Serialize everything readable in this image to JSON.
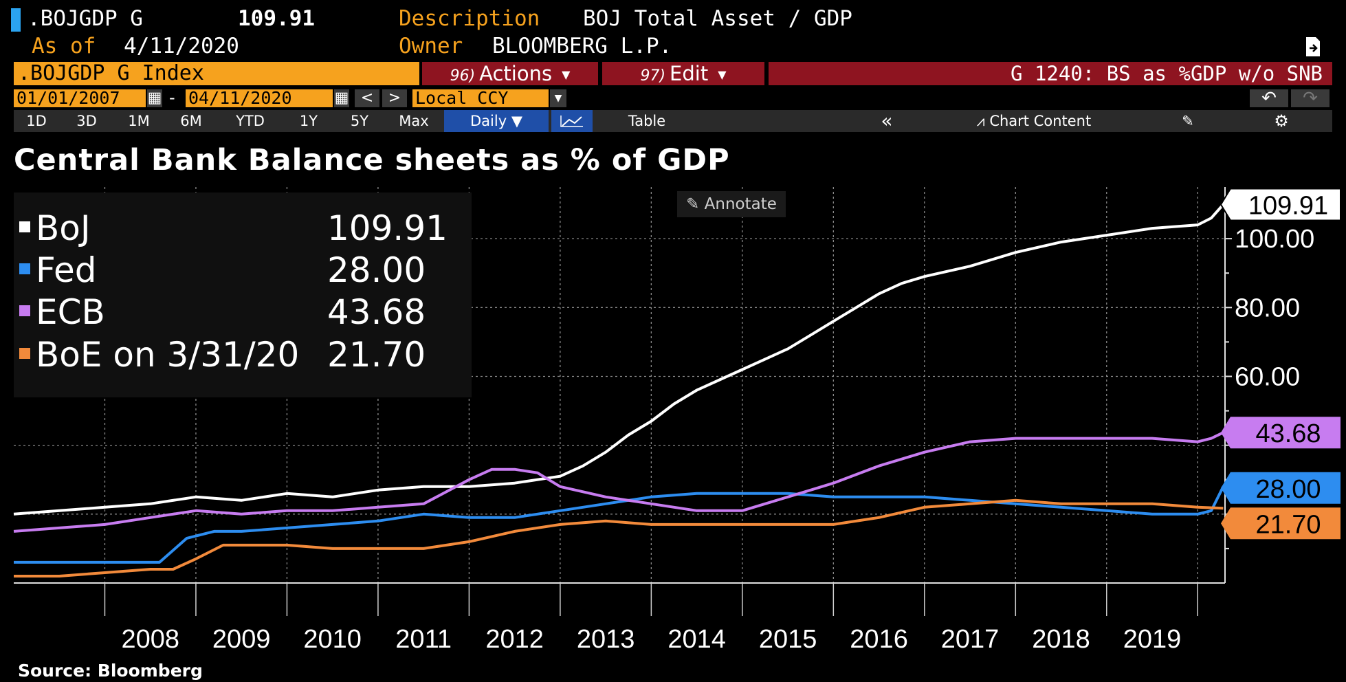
{
  "header": {
    "ticker": ".BOJGDP G",
    "last_value": "109.91",
    "description_label": "Description",
    "description": "BOJ Total Asset / GDP",
    "as_of_label": "As of",
    "as_of": "4/11/2020",
    "owner_label": "Owner",
    "owner": "BLOOMBERG L.P."
  },
  "toolbar": {
    "ticker_box": ".BOJGDP G Index",
    "actions_num": "96)",
    "actions_label": "Actions",
    "edit_num": "97)",
    "edit_label": "Edit",
    "chart_id": "G 1240: BS as %GDP w/o SNB",
    "start_date": "01/01/2007",
    "date_sep": "-",
    "end_date": "04/11/2020",
    "prev": "<",
    "next": ">",
    "currency": "Local CCY",
    "undo_icon": "undo-icon",
    "redo_icon": "redo-icon"
  },
  "ranges": {
    "items": [
      "1D",
      "3D",
      "1M",
      "6M",
      "YTD",
      "1Y",
      "5Y",
      "Max"
    ],
    "frequency": "Daily",
    "table_label": "Table",
    "collapse": "«",
    "chart_content_label": "Chart Content"
  },
  "annotate_label": "Annotate",
  "legend": [
    {
      "name": "BoJ",
      "value": "109.91"
    },
    {
      "name": "Fed",
      "value": "28.00"
    },
    {
      "name": "ECB",
      "value": "43.68"
    },
    {
      "name": "BoE on 3/31/20",
      "value": "21.70"
    }
  ],
  "source": "Source: Bloomberg",
  "chart_data": {
    "type": "line",
    "title": "Central Bank Balance sheets as % of GDP",
    "xlabel": "",
    "ylabel": "",
    "x_ticks": [
      "2008",
      "2009",
      "2010",
      "2011",
      "2012",
      "2013",
      "2014",
      "2015",
      "2016",
      "2017",
      "2018",
      "2019"
    ],
    "y_ticks": [
      "100.00",
      "80.00",
      "60.00"
    ],
    "ylim": [
      0,
      115
    ],
    "xlim": [
      2007.0,
      2020.3
    ],
    "grid": true,
    "axis_side": "right",
    "series": [
      {
        "name": "BoJ",
        "color": "#ffffff",
        "last": "109.91",
        "x": [
          2007.0,
          2007.5,
          2008.0,
          2008.5,
          2009.0,
          2009.5,
          2010.0,
          2010.5,
          2011.0,
          2011.5,
          2012.0,
          2012.5,
          2013.0,
          2013.25,
          2013.5,
          2013.75,
          2014.0,
          2014.25,
          2014.5,
          2014.75,
          2015.0,
          2015.25,
          2015.5,
          2015.75,
          2016.0,
          2016.25,
          2016.5,
          2016.75,
          2017.0,
          2017.5,
          2018.0,
          2018.5,
          2019.0,
          2019.5,
          2020.0,
          2020.15,
          2020.28
        ],
        "y": [
          20,
          21,
          22,
          23,
          25,
          24,
          26,
          25,
          27,
          28,
          28,
          29,
          31,
          34,
          38,
          43,
          47,
          52,
          56,
          59,
          62,
          65,
          68,
          72,
          76,
          80,
          84,
          87,
          89,
          92,
          96,
          99,
          101,
          103,
          104,
          106,
          109.91
        ]
      },
      {
        "name": "Fed",
        "color": "#2d8df0",
        "last": "28.00",
        "x": [
          2007.0,
          2007.5,
          2008.0,
          2008.6,
          2008.9,
          2009.2,
          2009.5,
          2010.0,
          2010.5,
          2011.0,
          2011.5,
          2012.0,
          2012.5,
          2013.0,
          2013.5,
          2014.0,
          2014.5,
          2015.0,
          2015.5,
          2016.0,
          2016.5,
          2017.0,
          2017.5,
          2018.0,
          2018.5,
          2019.0,
          2019.5,
          2020.0,
          2020.15,
          2020.28
        ],
        "y": [
          6,
          6,
          6,
          6,
          13,
          15,
          15,
          16,
          17,
          18,
          20,
          19,
          19,
          21,
          23,
          25,
          26,
          26,
          26,
          25,
          25,
          25,
          24,
          23,
          22,
          21,
          20,
          20,
          21,
          28
        ]
      },
      {
        "name": "ECB",
        "color": "#c77cf0",
        "last": "43.68",
        "x": [
          2007.0,
          2007.5,
          2008.0,
          2008.5,
          2009.0,
          2009.5,
          2010.0,
          2010.5,
          2011.0,
          2011.5,
          2012.0,
          2012.25,
          2012.5,
          2012.75,
          2013.0,
          2013.5,
          2014.0,
          2014.5,
          2015.0,
          2015.25,
          2015.5,
          2015.75,
          2016.0,
          2016.5,
          2017.0,
          2017.5,
          2018.0,
          2018.5,
          2019.0,
          2019.5,
          2020.0,
          2020.15,
          2020.28
        ],
        "y": [
          15,
          16,
          17,
          19,
          21,
          20,
          21,
          21,
          22,
          23,
          30,
          33,
          33,
          32,
          28,
          25,
          23,
          21,
          21,
          23,
          25,
          27,
          29,
          34,
          38,
          41,
          42,
          42,
          42,
          42,
          41,
          42,
          43.68
        ]
      },
      {
        "name": "BoE",
        "color": "#f28a3b",
        "last": "21.70",
        "x": [
          2007.0,
          2007.5,
          2008.0,
          2008.5,
          2008.75,
          2009.0,
          2009.3,
          2009.6,
          2010.0,
          2010.5,
          2011.0,
          2011.5,
          2012.0,
          2012.5,
          2013.0,
          2013.5,
          2014.0,
          2014.5,
          2015.0,
          2015.5,
          2016.0,
          2016.5,
          2017.0,
          2017.5,
          2018.0,
          2018.5,
          2019.0,
          2019.5,
          2020.0,
          2020.28
        ],
        "y": [
          2,
          2,
          3,
          4,
          4,
          7,
          11,
          11,
          11,
          10,
          10,
          10,
          12,
          15,
          17,
          18,
          17,
          17,
          17,
          17,
          17,
          19,
          22,
          23,
          24,
          23,
          23,
          23,
          22,
          21.7
        ]
      }
    ]
  }
}
